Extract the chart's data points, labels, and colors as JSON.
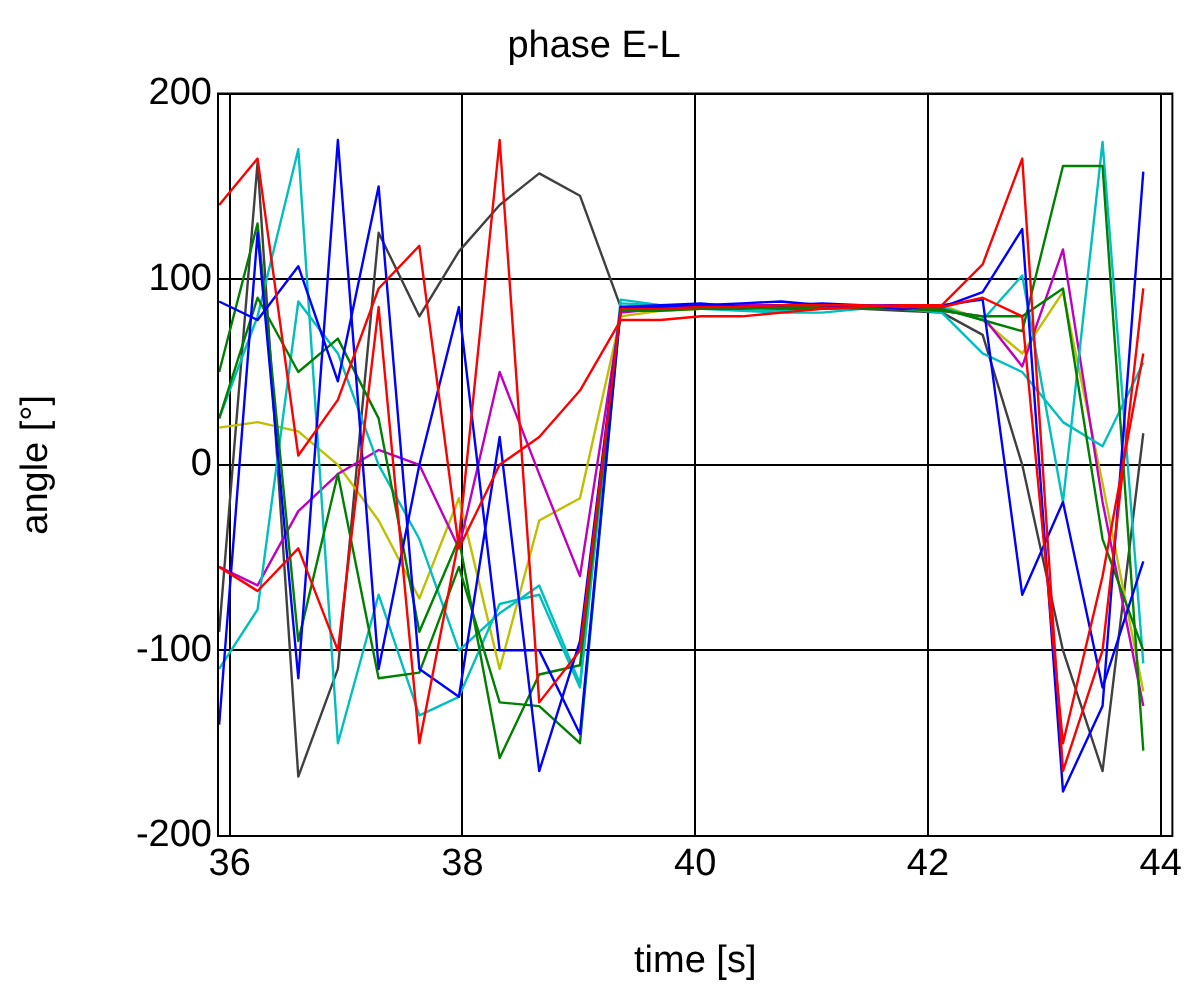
{
  "chart_data": {
    "type": "line",
    "title": "phase E-L",
    "xlabel": "time [s]",
    "ylabel": "angle [°]",
    "x": [
      35.91,
      36.24,
      36.59,
      36.93,
      37.28,
      37.63,
      37.97,
      38.32,
      38.66,
      39.01,
      39.36,
      39.7,
      40.05,
      40.4,
      40.74,
      41.09,
      41.43,
      41.78,
      42.12,
      42.47,
      42.81,
      43.16,
      43.5,
      43.85
    ],
    "xlim": [
      35.9,
      44.1
    ],
    "xticks": [
      36,
      38,
      40,
      42,
      44
    ],
    "ylim": [
      -200,
      200
    ],
    "yticks": [
      -200,
      -100,
      0,
      100,
      200
    ],
    "grid": true,
    "legend": false,
    "marker": "none",
    "series": [
      {
        "color": "#ff0000",
        "values": [
          140,
          165,
          5,
          35,
          95,
          118,
          -45,
          0,
          15,
          40,
          78,
          78,
          80,
          80,
          82,
          84,
          85,
          86,
          86,
          108,
          165,
          -165,
          -100,
          95
        ]
      },
      {
        "color": "#ff0000",
        "values": [
          -55,
          -68,
          -45,
          -100,
          85,
          -150,
          -40,
          175,
          -128,
          -100,
          84,
          84,
          85,
          85,
          86,
          86,
          86,
          85,
          85,
          90,
          80,
          -150,
          -60,
          60
        ]
      },
      {
        "color": "#0000ff",
        "values": [
          -140,
          125,
          -115,
          175,
          -110,
          0,
          85,
          -100,
          -100,
          -145,
          85,
          85,
          86,
          87,
          88,
          86,
          85,
          86,
          85,
          93,
          127,
          -176,
          -130,
          158
        ]
      },
      {
        "color": "#0000ff",
        "values": [
          88,
          78,
          107,
          45,
          150,
          -110,
          -125,
          15,
          -165,
          -95,
          85,
          86,
          87,
          85,
          86,
          87,
          86,
          84,
          86,
          89,
          -70,
          -20,
          -120,
          -52
        ]
      },
      {
        "color": "#008000",
        "values": [
          50,
          130,
          -95,
          -5,
          -115,
          -112,
          -55,
          -128,
          -130,
          -150,
          84,
          84,
          85,
          85,
          84,
          84,
          85,
          85,
          84,
          78,
          72,
          161,
          161,
          -154
        ]
      },
      {
        "color": "#008000",
        "values": [
          25,
          90,
          50,
          68,
          25,
          -90,
          -40,
          -158,
          -113,
          -108,
          83,
          83,
          84,
          84,
          85,
          85,
          84,
          84,
          83,
          80,
          80,
          95,
          -40,
          -100
        ]
      },
      {
        "color": "#00bfbf",
        "values": [
          25,
          80,
          170,
          -150,
          -70,
          -135,
          -125,
          -75,
          -70,
          -120,
          89,
          86,
          85,
          84,
          83,
          84,
          84,
          85,
          85,
          78,
          102,
          -20,
          174,
          -107
        ]
      },
      {
        "color": "#00bfbf",
        "values": [
          -110,
          -78,
          88,
          60,
          0,
          -40,
          -100,
          -80,
          -65,
          -118,
          87,
          86,
          84,
          83,
          82,
          82,
          84,
          84,
          82,
          60,
          50,
          23,
          10,
          55
        ]
      },
      {
        "color": "#bf00bf",
        "values": [
          -55,
          -65,
          -25,
          -5,
          8,
          0,
          -45,
          50,
          -5,
          -60,
          82,
          84,
          85,
          86,
          86,
          85,
          86,
          86,
          83,
          80,
          53,
          116,
          -20,
          -130
        ]
      },
      {
        "color": "#bfbf00",
        "values": [
          20,
          23,
          18,
          0,
          -30,
          -72,
          -18,
          -110,
          -30,
          -18,
          80,
          83,
          84,
          84,
          85,
          85,
          85,
          85,
          86,
          78,
          60,
          93,
          -10,
          -122
        ]
      },
      {
        "color": "#404040",
        "values": [
          -90,
          163,
          -168,
          -110,
          125,
          80,
          115,
          140,
          157,
          145,
          85,
          84,
          84,
          84,
          84,
          84,
          84,
          83,
          82,
          70,
          0,
          -100,
          -165,
          17
        ]
      }
    ]
  }
}
